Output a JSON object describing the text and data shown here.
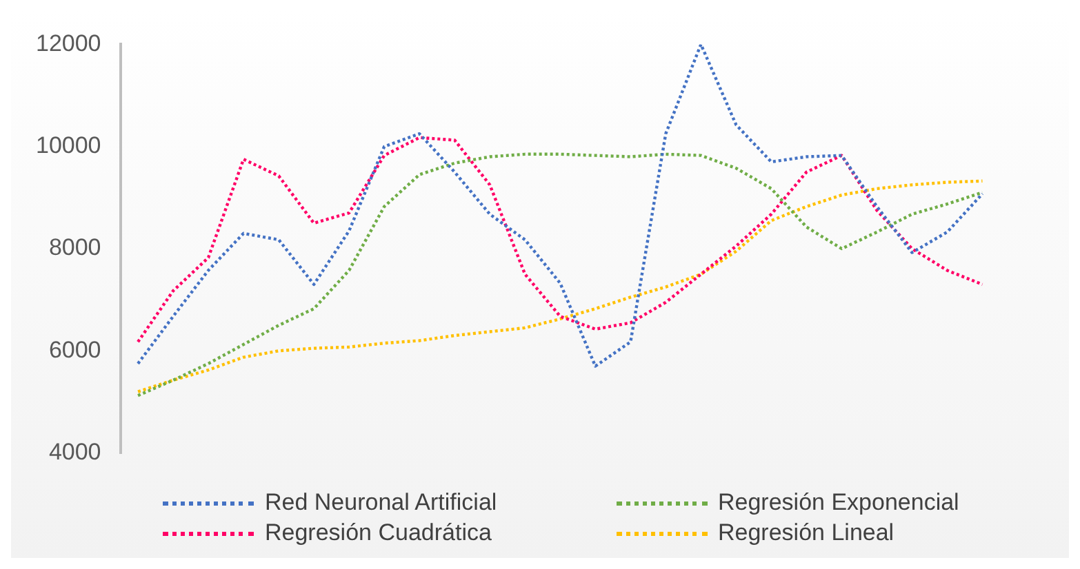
{
  "chart_data": {
    "type": "line",
    "categories": [
      null,
      null,
      null,
      null,
      null,
      null,
      null,
      null,
      null,
      null,
      null,
      null,
      null,
      null,
      null,
      null,
      null,
      null,
      null,
      null,
      null,
      null,
      null,
      null,
      null
    ],
    "series": [
      {
        "name": "Red Neuronal Artificial",
        "color": "#4472c4",
        "values": [
          5750,
          6675,
          7575,
          8300,
          8175,
          7300,
          8350,
          10000,
          10250,
          9500,
          8675,
          8175,
          7325,
          5700,
          6175,
          10250,
          12000,
          10425,
          9700,
          9800,
          9825,
          8825,
          7925,
          8325,
          9075
        ]
      },
      {
        "name": "Regresión Exponencial",
        "color": "#70ad47",
        "values": [
          5125,
          5425,
          5750,
          6125,
          6500,
          6825,
          7575,
          8825,
          9450,
          9675,
          9800,
          9850,
          9850,
          9825,
          9800,
          9850,
          9825,
          9575,
          9175,
          8425,
          8000,
          8325,
          8675,
          8875,
          9100
        ]
      },
      {
        "name": "Regresión Cuadrática",
        "color": "#ff0066",
        "values": [
          6175,
          7175,
          7825,
          9750,
          9425,
          8500,
          8700,
          9825,
          10175,
          10125,
          9250,
          7500,
          6675,
          6425,
          6550,
          6950,
          7500,
          8050,
          8675,
          9500,
          9825,
          8750,
          8000,
          7575,
          7300
        ]
      },
      {
        "name": "Regresión Lineal",
        "color": "#ffc000",
        "values": [
          5200,
          5425,
          5625,
          5875,
          6000,
          6050,
          6075,
          6150,
          6200,
          6300,
          6375,
          6450,
          6625,
          6825,
          7050,
          7250,
          7500,
          7950,
          8550,
          8825,
          9050,
          9175,
          9250,
          9300,
          9325
        ]
      }
    ],
    "ylim": [
      4000,
      12000
    ],
    "yticks": [
      4000,
      6000,
      8000,
      10000,
      12000
    ],
    "grid": false,
    "legend": "bottom",
    "marker": "none",
    "line_style": "dotted"
  }
}
